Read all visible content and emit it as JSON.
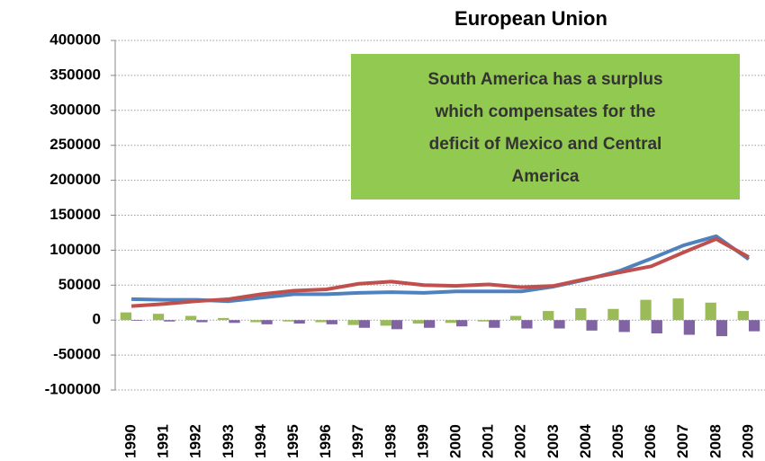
{
  "chart_data": {
    "type": "combo",
    "title": "European Union",
    "categories": [
      "1990",
      "1991",
      "1992",
      "1993",
      "1994",
      "1995",
      "1996",
      "1997",
      "1998",
      "1999",
      "2000",
      "2001",
      "2002",
      "2003",
      "2004",
      "2005",
      "2006",
      "2007",
      "2008",
      "2009"
    ],
    "series": [
      {
        "kind": "bar",
        "color": "#9bbb59",
        "values": [
          11000,
          9000,
          6000,
          3000,
          -3000,
          -2000,
          -3000,
          -7000,
          -8000,
          -5000,
          -4000,
          -2000,
          6000,
          13000,
          17000,
          16000,
          29000,
          31000,
          25000,
          13000
        ]
      },
      {
        "kind": "bar",
        "color": "#8064a2",
        "values": [
          -1000,
          -2000,
          -3000,
          -4000,
          -6000,
          -5000,
          -6000,
          -11000,
          -13000,
          -11000,
          -9000,
          -11000,
          -12000,
          -12000,
          -15000,
          -17000,
          -19000,
          -21000,
          -23000,
          -16000
        ]
      },
      {
        "kind": "line",
        "color": "#4f81bd",
        "values": [
          30000,
          29000,
          29000,
          27000,
          32000,
          37000,
          37000,
          39000,
          40000,
          39000,
          41000,
          41000,
          41000,
          48000,
          58000,
          70000,
          88000,
          107000,
          120000,
          87000
        ]
      },
      {
        "kind": "line",
        "color": "#c0504d",
        "values": [
          20000,
          23000,
          27000,
          30000,
          37000,
          42000,
          44000,
          52000,
          55000,
          50000,
          49000,
          51000,
          47000,
          49000,
          59000,
          68000,
          77000,
          97000,
          116000,
          90000
        ]
      }
    ],
    "annotation": {
      "lines": [
        "South America has a surplus",
        "which compensates for the",
        "deficit of Mexico and Central",
        "America"
      ],
      "color": "#92c950"
    },
    "ylim": [
      -100000,
      400000
    ],
    "yticks": [
      -100000,
      -50000,
      0,
      50000,
      100000,
      150000,
      200000,
      250000,
      300000,
      350000,
      400000
    ],
    "grid": true
  }
}
